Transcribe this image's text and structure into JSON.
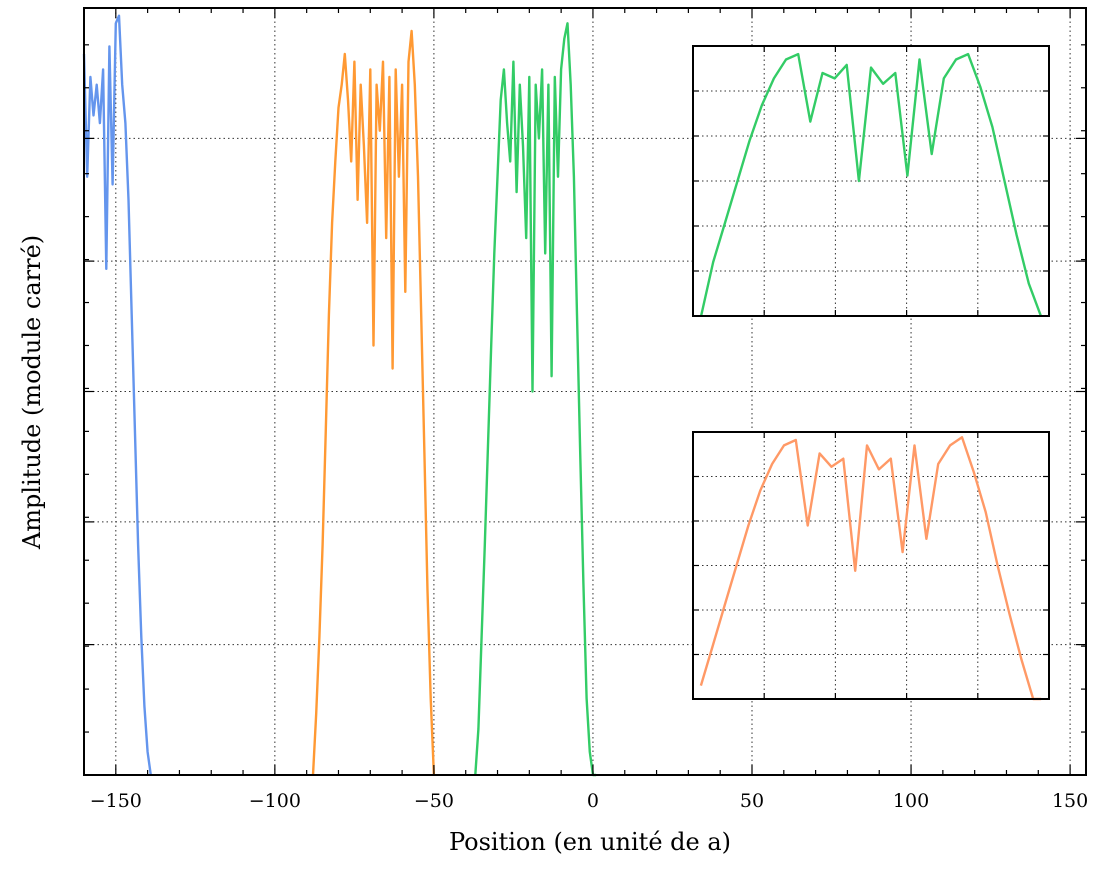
{
  "chart_data": {
    "type": "line",
    "xlabel": "Position (en unité de a)",
    "ylabel": "Amplitude (module carré)",
    "xlim": [
      -160,
      155
    ],
    "ylim": [
      0,
      1.0
    ],
    "x_ticks": [
      -150,
      -100,
      -50,
      0,
      50,
      100,
      150
    ],
    "x_tick_labels": [
      "−150",
      "−100",
      "−50",
      "0",
      "50",
      "100",
      "150"
    ],
    "y_major_ticks": [
      0.17,
      0.33,
      0.5,
      0.67,
      0.83
    ],
    "y_minor_step": 0.056,
    "y_tick_labels_shown": false,
    "grid": true,
    "legend": "none",
    "colors": {
      "blue": "#6495ED",
      "orange": "#FF9933",
      "green": "#33CC66",
      "salmon": "#FF9966"
    },
    "series": [
      {
        "color": "#6495ED",
        "x": [
          -160,
          -159,
          -158,
          -157,
          -156,
          -155,
          -154,
          -153,
          -152,
          -151,
          -150,
          -149,
          -148,
          -147,
          -146,
          -145,
          -144,
          -143,
          -142,
          -141,
          -140,
          -139
        ],
        "y": [
          0.94,
          0.78,
          0.91,
          0.86,
          0.9,
          0.85,
          0.92,
          0.66,
          0.95,
          0.77,
          0.98,
          0.99,
          0.9,
          0.85,
          0.75,
          0.6,
          0.45,
          0.3,
          0.18,
          0.09,
          0.03,
          0.0
        ]
      },
      {
        "color": "#FF9933",
        "x": [
          -88,
          -87,
          -86,
          -85,
          -84,
          -83,
          -82,
          -81,
          -80,
          -79,
          -78,
          -77,
          -76,
          -75,
          -74,
          -73,
          -72,
          -71,
          -70,
          -69,
          -68,
          -67,
          -66,
          -65,
          -64,
          -63,
          -62,
          -61,
          -60,
          -59,
          -58,
          -57,
          -56,
          -55,
          -54,
          -53,
          -52,
          -51,
          -50
        ],
        "y": [
          0.0,
          0.08,
          0.18,
          0.3,
          0.45,
          0.6,
          0.72,
          0.8,
          0.87,
          0.9,
          0.94,
          0.88,
          0.8,
          0.93,
          0.75,
          0.9,
          0.82,
          0.72,
          0.92,
          0.56,
          0.9,
          0.84,
          0.93,
          0.7,
          0.91,
          0.53,
          0.92,
          0.78,
          0.9,
          0.63,
          0.93,
          0.97,
          0.9,
          0.78,
          0.6,
          0.42,
          0.24,
          0.1,
          0.0
        ]
      },
      {
        "color": "#33CC66",
        "x": [
          -37,
          -36,
          -35,
          -34,
          -33,
          -32,
          -31,
          -30,
          -29,
          -28,
          -27,
          -26,
          -25,
          -24,
          -23,
          -22,
          -21,
          -20,
          -19,
          -18,
          -17,
          -16,
          -15,
          -14,
          -13,
          -12,
          -11,
          -10,
          -9,
          -8,
          -7,
          -6,
          -5,
          -4,
          -3,
          -2,
          -1,
          0,
          1
        ],
        "y": [
          0.0,
          0.06,
          0.18,
          0.3,
          0.43,
          0.56,
          0.68,
          0.78,
          0.88,
          0.92,
          0.85,
          0.8,
          0.93,
          0.76,
          0.9,
          0.82,
          0.7,
          0.91,
          0.5,
          0.9,
          0.83,
          0.92,
          0.68,
          0.9,
          0.52,
          0.91,
          0.78,
          0.92,
          0.96,
          0.98,
          0.9,
          0.78,
          0.6,
          0.42,
          0.25,
          0.1,
          0.03,
          0.0,
          0.0
        ]
      },
      {
        "color": "#33CC66",
        "inset": "top",
        "x": [
          42,
          45,
          48,
          51,
          54,
          57,
          60,
          63,
          66,
          69,
          72,
          75,
          78,
          81,
          84,
          87,
          90,
          93,
          96,
          99,
          102,
          105,
          108,
          111,
          114,
          117,
          120,
          123,
          126
        ],
        "y": [
          0.0,
          0.2,
          0.35,
          0.5,
          0.65,
          0.78,
          0.88,
          0.95,
          0.97,
          0.72,
          0.9,
          0.88,
          0.93,
          0.5,
          0.92,
          0.86,
          0.9,
          0.52,
          0.95,
          0.6,
          0.88,
          0.95,
          0.97,
          0.85,
          0.7,
          0.5,
          0.3,
          0.12,
          0.0
        ]
      },
      {
        "color": "#FF9966",
        "inset": "bottom",
        "x": [
          37,
          40,
          43,
          46,
          49,
          52,
          55,
          58,
          61,
          64,
          67,
          70,
          73,
          76,
          79,
          82,
          85,
          88,
          91,
          94,
          97,
          100,
          103,
          106,
          109,
          112,
          115,
          118,
          121,
          123
        ],
        "y": [
          0.05,
          0.2,
          0.35,
          0.5,
          0.65,
          0.78,
          0.88,
          0.95,
          0.97,
          0.65,
          0.92,
          0.87,
          0.9,
          0.48,
          0.95,
          0.86,
          0.9,
          0.55,
          0.95,
          0.6,
          0.88,
          0.95,
          0.98,
          0.85,
          0.7,
          0.5,
          0.32,
          0.15,
          0.0,
          0.0
        ]
      }
    ]
  }
}
